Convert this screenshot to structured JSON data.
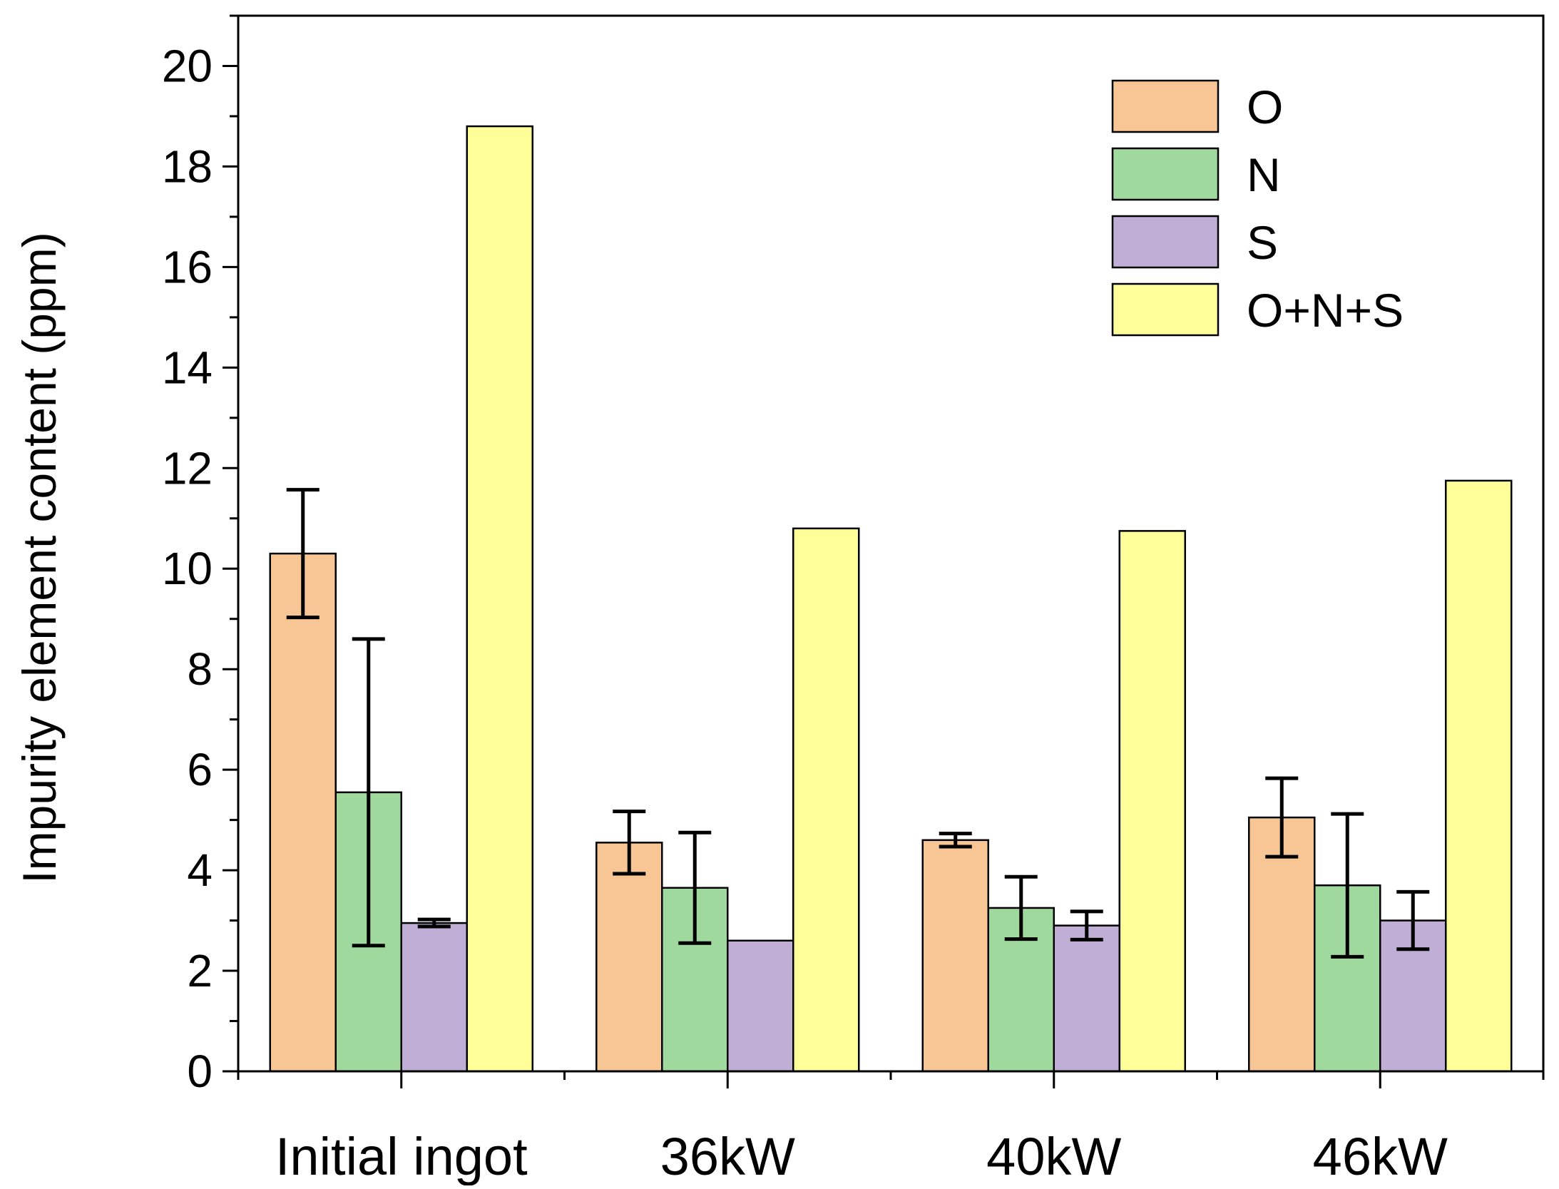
{
  "chart_data": {
    "type": "bar",
    "title": "",
    "xlabel": "",
    "ylabel": "Impurity element content (ppm)",
    "ylim": [
      0,
      21
    ],
    "yticks": [
      0,
      2,
      4,
      6,
      8,
      10,
      12,
      14,
      16,
      18,
      20
    ],
    "categories": [
      "Initial ingot",
      "36kW",
      "40kW",
      "46kW"
    ],
    "series": [
      {
        "name": "O",
        "color": "#f8c594",
        "values": [
          10.3,
          4.55,
          4.6,
          5.05
        ],
        "errors": [
          1.27,
          0.62,
          0.13,
          0.78
        ]
      },
      {
        "name": "N",
        "color": "#9fd99e",
        "values": [
          5.55,
          3.65,
          3.25,
          3.7
        ],
        "errors": [
          3.05,
          1.1,
          0.62,
          1.42
        ]
      },
      {
        "name": "S",
        "color": "#c0aed6",
        "values": [
          2.95,
          2.6,
          2.9,
          3.0
        ],
        "errors": [
          0.07,
          null,
          0.28,
          0.57
        ]
      },
      {
        "name": "O+N+S",
        "color": "#ffff99",
        "values": [
          18.8,
          10.8,
          10.75,
          11.75
        ],
        "errors": [
          null,
          null,
          null,
          null
        ]
      }
    ],
    "legend_position": "top-right",
    "grid": false
  }
}
